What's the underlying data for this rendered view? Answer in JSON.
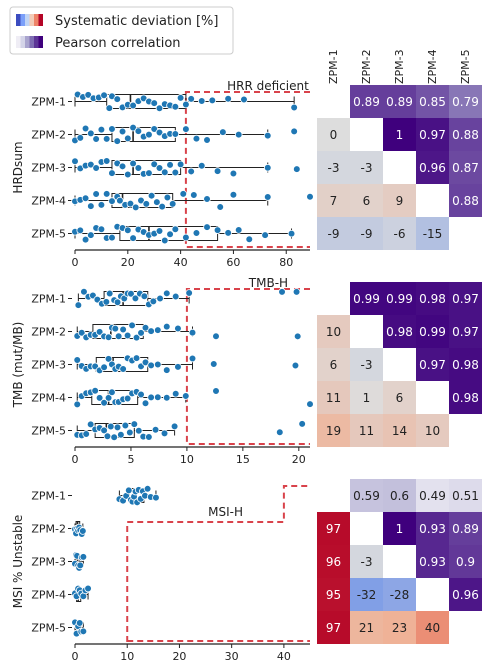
{
  "legend": {
    "items": [
      {
        "label": "Systematic deviation [%]",
        "swatch": [
          "#3b4cc0",
          "#7b9ff9",
          "#c0d4f5",
          "#f2cbb7",
          "#ee8468",
          "#b40426"
        ]
      },
      {
        "label": "Pearson correlation",
        "swatch": [
          "#efedf5",
          "#d4d4e8",
          "#a9a4ce",
          "#7e6db2",
          "#5c3596",
          "#3f007d"
        ]
      }
    ]
  },
  "heatmap_columns": [
    "ZPM-1",
    "ZPM-2",
    "ZPM-3",
    "ZPM-4",
    "ZPM-5"
  ],
  "row_labels": [
    "ZPM-1",
    "ZPM-2",
    "ZPM-3",
    "ZPM-4",
    "ZPM-5"
  ],
  "colors": {
    "point": "#1f77b4",
    "threshold": "#d9434b",
    "corr_max": "#3f007d",
    "corr_min": "#efedf5",
    "dev_pos": "#b40426",
    "dev_neg": "#3b4cc0",
    "dev_zero": "#dddddd"
  },
  "chart_data": [
    {
      "type": "box",
      "ylabel": "HRDsum",
      "xlim": [
        0,
        89
      ],
      "xticks": [
        0,
        20,
        40,
        60,
        80
      ],
      "threshold": {
        "label": "HRR deficient",
        "x": 42,
        "direction": "above"
      },
      "series": [
        {
          "name": "ZPM-1",
          "box": {
            "q1": 12,
            "median": 21,
            "q3": 42,
            "whisker_low": 0,
            "whisker_high": 83
          },
          "points": [
            1,
            3,
            5,
            7,
            9,
            11,
            13,
            14,
            16,
            18,
            20,
            22,
            24,
            26,
            28,
            30,
            32,
            34,
            36,
            38,
            40,
            42,
            44,
            48,
            52,
            58,
            64,
            83
          ]
        },
        {
          "name": "ZPM-2",
          "box": {
            "q1": 14,
            "median": 22,
            "q3": 38,
            "whisker_low": 0,
            "whisker_high": 73
          },
          "points": [
            0,
            2,
            4,
            6,
            8,
            10,
            12,
            14,
            16,
            18,
            20,
            22,
            24,
            26,
            28,
            30,
            32,
            34,
            36,
            38,
            42,
            46,
            50,
            56,
            62,
            73,
            83
          ]
        },
        {
          "name": "ZPM-3",
          "box": {
            "q1": 14,
            "median": 22,
            "q3": 40,
            "whisker_low": 0,
            "whisker_high": 73
          },
          "points": [
            0,
            2,
            4,
            6,
            8,
            10,
            12,
            14,
            16,
            18,
            20,
            22,
            24,
            26,
            28,
            30,
            32,
            34,
            36,
            38,
            40,
            44,
            48,
            54,
            60,
            73,
            84
          ]
        },
        {
          "name": "ZPM-4",
          "box": {
            "q1": 14,
            "median": 18,
            "q3": 37,
            "whisker_low": 0,
            "whisker_high": 73
          },
          "points": [
            0,
            2,
            4,
            6,
            8,
            10,
            12,
            14,
            16,
            17,
            19,
            21,
            23,
            25,
            27,
            29,
            31,
            33,
            35,
            37,
            41,
            45,
            50,
            55,
            60,
            73,
            89
          ]
        },
        {
          "name": "ZPM-5",
          "box": {
            "q1": 17,
            "median": 28,
            "q3": 54,
            "whisker_low": 0,
            "whisker_high": 82
          },
          "points": [
            0,
            2,
            4,
            6,
            8,
            10,
            12,
            14,
            16,
            18,
            20,
            22,
            24,
            26,
            28,
            30,
            32,
            34,
            36,
            38,
            42,
            46,
            50,
            54,
            58,
            62,
            66,
            72,
            82
          ]
        }
      ],
      "heatmap": {
        "cells": [
          [
            null,
            0.89,
            0.89,
            0.85,
            0.79
          ],
          [
            0,
            null,
            1,
            0.97,
            0.88
          ],
          [
            -3,
            -3,
            null,
            0.96,
            0.87
          ],
          [
            7,
            6,
            9,
            null,
            0.88
          ],
          [
            -9,
            -9,
            -6,
            -15,
            null
          ]
        ],
        "labels": [
          [
            "",
            "0.89",
            "0.89",
            "0.85",
            "0.79"
          ],
          [
            "0",
            "",
            "1",
            "0.97",
            "0.88"
          ],
          [
            "-3",
            "-3",
            "",
            "0.96",
            "0.87"
          ],
          [
            "7",
            "6",
            "9",
            "",
            "0.88"
          ],
          [
            "-9",
            "-9",
            "-6",
            "-15",
            ""
          ]
        ]
      }
    },
    {
      "type": "box",
      "ylabel": "TMB (mut/MB)",
      "xlim": [
        0,
        21
      ],
      "xticks": [
        0,
        5,
        10,
        15,
        20
      ],
      "threshold": {
        "label": "TMB-H",
        "x": 10,
        "direction": "above"
      },
      "series": [
        {
          "name": "ZPM-1",
          "box": {
            "q1": 2.6,
            "median": 4.3,
            "q3": 6.5,
            "whisker_low": 0.3,
            "whisker_high": 10.2
          },
          "points": [
            0.3,
            0.8,
            1.2,
            1.6,
            2.0,
            2.4,
            2.8,
            3.1,
            3.5,
            3.8,
            4.1,
            4.4,
            4.7,
            5.0,
            5.4,
            5.8,
            6.2,
            6.6,
            7.0,
            7.6,
            8.2,
            9.0,
            10.2,
            18.5,
            19.8
          ]
        },
        {
          "name": "ZPM-2",
          "box": {
            "q1": 1.6,
            "median": 3.2,
            "q3": 6.1,
            "whisker_low": 0.2,
            "whisker_high": 10.5
          },
          "points": [
            0.2,
            0.6,
            1.0,
            1.4,
            1.8,
            2.2,
            2.6,
            3.0,
            3.3,
            3.6,
            3.9,
            4.3,
            4.7,
            5.1,
            5.5,
            5.9,
            6.3,
            6.8,
            7.4,
            8.2,
            9.2,
            10.5,
            12.6,
            19.9
          ]
        },
        {
          "name": "ZPM-3",
          "box": {
            "q1": 1.9,
            "median": 3.4,
            "q3": 6.5,
            "whisker_low": 0.2,
            "whisker_high": 10.5
          },
          "points": [
            0.2,
            0.6,
            1.0,
            1.4,
            1.8,
            2.2,
            2.6,
            3.0,
            3.3,
            3.6,
            3.9,
            4.3,
            4.7,
            5.1,
            5.5,
            5.9,
            6.3,
            6.8,
            7.4,
            8.2,
            9.2,
            10.5,
            12.4,
            19.7
          ]
        },
        {
          "name": "ZPM-4",
          "box": {
            "q1": 1.5,
            "median": 3.0,
            "q3": 5.6,
            "whisker_low": 0.2,
            "whisker_high": 9.9
          },
          "points": [
            0.2,
            0.6,
            1.0,
            1.4,
            1.8,
            2.2,
            2.6,
            3.0,
            3.3,
            3.6,
            3.9,
            4.3,
            4.7,
            5.1,
            5.5,
            5.9,
            6.3,
            6.8,
            7.4,
            8.2,
            9.0,
            9.9,
            12.6,
            21.0
          ]
        },
        {
          "name": "ZPM-5",
          "box": {
            "q1": 1.8,
            "median": 2.8,
            "q3": 5.3,
            "whisker_low": 0.2,
            "whisker_high": 8.9
          },
          "points": [
            0.2,
            0.6,
            1.0,
            1.4,
            1.8,
            2.2,
            2.6,
            2.9,
            3.2,
            3.5,
            3.8,
            4.1,
            4.5,
            4.9,
            5.3,
            5.7,
            6.1,
            6.6,
            7.2,
            8.0,
            8.9,
            18.3,
            20.3
          ]
        }
      ],
      "heatmap": {
        "cells": [
          [
            null,
            0.99,
            0.99,
            0.98,
            0.97
          ],
          [
            10,
            null,
            0.98,
            0.99,
            0.97
          ],
          [
            6,
            -3,
            null,
            0.97,
            0.98
          ],
          [
            11,
            1,
            6,
            null,
            0.98
          ],
          [
            19,
            11,
            14,
            10,
            null
          ]
        ],
        "labels": [
          [
            "",
            "0.99",
            "0.99",
            "0.98",
            "0.97"
          ],
          [
            "10",
            "",
            "0.98",
            "0.99",
            "0.97"
          ],
          [
            "6",
            "-3",
            "",
            "0.97",
            "0.98"
          ],
          [
            "11",
            "1",
            "6",
            "",
            "0.98"
          ],
          [
            "19",
            "11",
            "14",
            "10",
            ""
          ]
        ]
      }
    },
    {
      "type": "box",
      "ylabel": "MSI % Unstable",
      "xlim": [
        0,
        45
      ],
      "xticks": [
        0,
        10,
        20,
        30,
        40
      ],
      "threshold": {
        "label": "MSI-H",
        "x": 10,
        "level": 40,
        "direction": "above"
      },
      "series": [
        {
          "name": "ZPM-1",
          "box": {
            "q1": 10.4,
            "median": 11.6,
            "q3": 13.2,
            "whisker_low": 8.5,
            "whisker_high": 15.5
          },
          "points": [
            8.5,
            9.2,
            9.8,
            10.3,
            10.7,
            11.0,
            11.3,
            11.6,
            11.9,
            12.2,
            12.6,
            13.0,
            13.4,
            13.9,
            14.5,
            15.5
          ]
        },
        {
          "name": "ZPM-2",
          "box": {
            "q1": 0.2,
            "median": 0.5,
            "q3": 0.9,
            "whisker_low": 0,
            "whisker_high": 1.5
          },
          "points": [
            0,
            0.2,
            0.4,
            0.6,
            0.8,
            1.0,
            1.3,
            1.5
          ]
        },
        {
          "name": "ZPM-3",
          "box": {
            "q1": 0.2,
            "median": 0.5,
            "q3": 0.9,
            "whisker_low": 0,
            "whisker_high": 1.6
          },
          "points": [
            0,
            0.2,
            0.4,
            0.6,
            0.8,
            1.0,
            1.3,
            1.6
          ]
        },
        {
          "name": "ZPM-4",
          "box": {
            "q1": 0.3,
            "median": 0.6,
            "q3": 1.1,
            "whisker_low": 0,
            "whisker_high": 2.5
          },
          "points": [
            0,
            0.3,
            0.6,
            0.9,
            1.2,
            1.6,
            2.0,
            2.5
          ]
        },
        {
          "name": "ZPM-5",
          "box": {
            "q1": 0.2,
            "median": 0.6,
            "q3": 1.2,
            "whisker_low": 0,
            "whisker_high": 1.6
          },
          "points": [
            0,
            0.3,
            0.6,
            0.9,
            1.2,
            1.6
          ]
        }
      ],
      "heatmap": {
        "cells": [
          [
            null,
            0.59,
            0.6,
            0.49,
            0.51
          ],
          [
            97,
            null,
            1,
            0.93,
            0.89
          ],
          [
            96,
            -3,
            null,
            0.93,
            0.9
          ],
          [
            95,
            -32,
            -28,
            null,
            0.96
          ],
          [
            97,
            21,
            23,
            40,
            null
          ]
        ],
        "labels": [
          [
            "",
            "0.59",
            "0.6",
            "0.49",
            "0.51"
          ],
          [
            "97",
            "",
            "1",
            "0.93",
            "0.89"
          ],
          [
            "96",
            "-3",
            "",
            "0.93",
            "0.9"
          ],
          [
            "95",
            "-32",
            "-28",
            "",
            "0.96"
          ],
          [
            "97",
            "21",
            "23",
            "40",
            ""
          ]
        ]
      }
    }
  ]
}
